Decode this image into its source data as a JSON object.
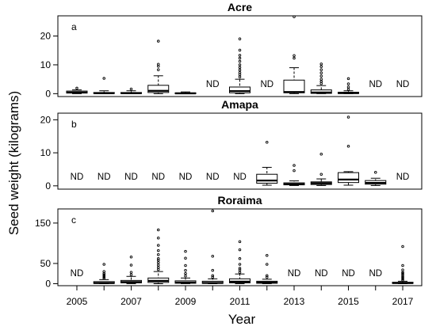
{
  "chart_data": {
    "type": "box",
    "xlabel": "Year",
    "ylabel": "Seed weight (kilograms)",
    "years": [
      2005,
      2006,
      2007,
      2008,
      2009,
      2010,
      2011,
      2012,
      2013,
      2014,
      2015,
      2016,
      2017
    ],
    "x_tick_labels": [
      "2005",
      "2007",
      "2009",
      "2011",
      "2013",
      "2015",
      "2017"
    ],
    "nd_label": "ND",
    "panels": [
      {
        "title": "Acre",
        "letter": "a",
        "ylim": [
          -1,
          27
        ],
        "yticks": [
          0,
          10,
          20
        ],
        "boxes": [
          {
            "year": 2005,
            "min": 0,
            "q1": 0.2,
            "median": 0.4,
            "q3": 0.9,
            "max": 1.3,
            "outliers": [
              1.9
            ]
          },
          {
            "year": 2006,
            "min": 0,
            "q1": 0.05,
            "median": 0.15,
            "q3": 0.4,
            "max": 1.0,
            "outliers": [
              5.3
            ]
          },
          {
            "year": 2007,
            "min": 0,
            "q1": 0.05,
            "median": 0.15,
            "q3": 0.4,
            "max": 1.0,
            "outliers": [
              1.6
            ]
          },
          {
            "year": 2008,
            "min": 0,
            "q1": 0.4,
            "median": 1.0,
            "q3": 2.9,
            "max": 6.2,
            "outliers": [
              8.3,
              9.5,
              10.2,
              18.2
            ]
          },
          {
            "year": 2009,
            "min": 0,
            "q1": 0.05,
            "median": 0.1,
            "q3": 0.3,
            "max": 0.6,
            "outliers": []
          },
          {
            "year": 2010,
            "nd": true
          },
          {
            "year": 2011,
            "min": 0,
            "q1": 0.3,
            "median": 0.9,
            "q3": 2.3,
            "max": 5.0,
            "outliers": [
              5.8,
              6.6,
              7.3,
              8.2,
              9.1,
              10.0,
              11.2,
              12.3,
              13.3,
              15.1,
              19.0
            ]
          },
          {
            "year": 2012,
            "nd": true
          },
          {
            "year": 2013,
            "min": 0,
            "q1": 0.3,
            "median": 0.6,
            "q3": 4.7,
            "max": 9.0,
            "outliers": [
              12.3,
              13.2,
              26.7
            ]
          },
          {
            "year": 2014,
            "min": 0,
            "q1": 0.1,
            "median": 0.4,
            "q3": 1.3,
            "max": 2.8,
            "outliers": [
              3.5,
              4.2,
              5.0,
              6.1,
              7.2,
              8.3,
              9.4,
              10.3
            ]
          },
          {
            "year": 2015,
            "min": 0,
            "q1": 0.05,
            "median": 0.2,
            "q3": 0.5,
            "max": 1.0,
            "outliers": [
              1.5,
              2.3,
              3.4,
              5.2
            ]
          },
          {
            "year": 2016,
            "nd": true
          },
          {
            "year": 2017,
            "nd": true
          }
        ]
      },
      {
        "title": "Amapa",
        "letter": "b",
        "ylim": [
          -1,
          22
        ],
        "yticks": [
          0,
          10,
          20
        ],
        "boxes": [
          {
            "year": 2005,
            "nd": true
          },
          {
            "year": 2006,
            "nd": true
          },
          {
            "year": 2007,
            "nd": true
          },
          {
            "year": 2008,
            "nd": true
          },
          {
            "year": 2009,
            "nd": true
          },
          {
            "year": 2010,
            "nd": true
          },
          {
            "year": 2011,
            "nd": true
          },
          {
            "year": 2012,
            "min": 0.2,
            "q1": 0.8,
            "median": 1.6,
            "q3": 3.5,
            "max": 5.6,
            "outliers": [
              13.2
            ]
          },
          {
            "year": 2013,
            "min": 0.1,
            "q1": 0.3,
            "median": 0.5,
            "q3": 0.9,
            "max": 1.5,
            "outliers": [
              4.6,
              6.2
            ]
          },
          {
            "year": 2014,
            "min": 0.1,
            "q1": 0.4,
            "median": 0.8,
            "q3": 1.2,
            "max": 2.1,
            "outliers": [
              3.5,
              9.6
            ]
          },
          {
            "year": 2015,
            "min": 0.2,
            "q1": 1.0,
            "median": 1.9,
            "q3": 4.0,
            "max": 4.3,
            "outliers": [
              12.0,
              20.8
            ]
          },
          {
            "year": 2016,
            "min": 0.1,
            "q1": 0.5,
            "median": 0.9,
            "q3": 1.6,
            "max": 2.3,
            "outliers": [
              4.1
            ]
          },
          {
            "year": 2017,
            "nd": true
          }
        ]
      },
      {
        "title": "Roraima",
        "letter": "c",
        "ylim": [
          -5,
          185
        ],
        "yticks": [
          0,
          50,
          150
        ],
        "boxes": [
          {
            "year": 2005,
            "nd": true
          },
          {
            "year": 2006,
            "min": 0,
            "q1": 0.5,
            "median": 1.5,
            "q3": 5.0,
            "max": 10,
            "outliers": [
              13,
              16,
              19,
              22,
              25,
              30,
              48
            ]
          },
          {
            "year": 2007,
            "min": 0,
            "q1": 2,
            "median": 4,
            "q3": 8,
            "max": 18,
            "outliers": [
              22,
              28,
              46,
              66
            ]
          },
          {
            "year": 2008,
            "min": 0,
            "q1": 3,
            "median": 7,
            "q3": 14,
            "max": 30,
            "outliers": [
              35,
              40,
              46,
              52,
              58,
              62,
              72,
              82,
              95,
              113,
              133
            ]
          },
          {
            "year": 2009,
            "min": 0,
            "q1": 1,
            "median": 3,
            "q3": 7,
            "max": 14,
            "outliers": [
              19,
              25,
              33,
              45,
              63,
              80
            ]
          },
          {
            "year": 2010,
            "min": 0,
            "q1": 0.5,
            "median": 2,
            "q3": 6,
            "max": 12,
            "outliers": [
              16,
              20,
              33,
              68,
              180
            ]
          },
          {
            "year": 2011,
            "min": 0,
            "q1": 2,
            "median": 5,
            "q3": 12,
            "max": 24,
            "outliers": [
              28,
              34,
              38,
              48,
              62,
              84,
              104
            ]
          },
          {
            "year": 2012,
            "min": 0,
            "q1": 1,
            "median": 3,
            "q3": 6,
            "max": 11,
            "outliers": [
              16,
              20,
              48,
              70
            ]
          },
          {
            "year": 2013,
            "nd": true
          },
          {
            "year": 2014,
            "nd": true
          },
          {
            "year": 2015,
            "nd": true
          },
          {
            "year": 2016,
            "nd": true
          },
          {
            "year": 2017,
            "min": 0,
            "q1": 0.5,
            "median": 1.5,
            "q3": 3.5,
            "max": 6,
            "outliers": [
              9,
              12,
              15,
              18,
              22,
              25,
              28,
              34,
              45,
              92
            ]
          }
        ]
      }
    ]
  }
}
